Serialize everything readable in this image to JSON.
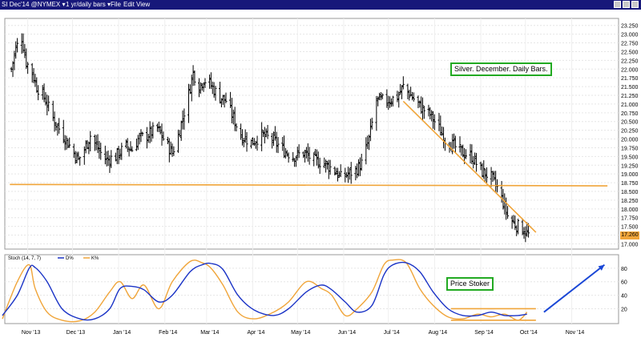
{
  "toolbar": {
    "symbol": "SI Dec'14 @NYMEX ▾",
    "interval": "1 yr/daily bars ▾",
    "menu_file": "File",
    "menu_edit": "Edit",
    "menu_view": "View"
  },
  "annotations": {
    "silver": "Silver. December. Daily Bars.",
    "stoker": "Price Stoker"
  },
  "colors": {
    "bars": "#000000",
    "trendline": "#f0a53a",
    "stoch_d": "#1a33c6",
    "stoch_k": "#f0a53a",
    "arrow": "#1a47d6",
    "note_border": "#22aa22",
    "titlebar": "#17187a"
  },
  "chart_data": [
    {
      "type": "ohlc",
      "title": "SI Dec'14 @NYMEX",
      "interval": "1 yr/daily bars",
      "x_labels": [
        "Nov '13",
        "Dec '13",
        "Jan '14",
        "Feb '14",
        "Mar '14",
        "Apr '14",
        "May '14",
        "Jun '14",
        "Jul '14",
        "Aug '14",
        "Sep '14",
        "Oct '14",
        "Nov '14"
      ],
      "y_ticks": [
        "23.250",
        "23.000",
        "22.750",
        "22.500",
        "22.250",
        "22.000",
        "21.750",
        "21.500",
        "21.250",
        "21.000",
        "20.750",
        "20.500",
        "20.250",
        "20.000",
        "19.750",
        "19.500",
        "19.250",
        "19.000",
        "18.750",
        "18.500",
        "18.250",
        "18.000",
        "17.750",
        "17.500",
        "17.250",
        "17.000"
      ],
      "ylim": [
        16.85,
        23.45
      ],
      "last_price": "17.260",
      "close_path": [
        [
          "2013-10-21",
          22.0
        ],
        [
          "2013-10-24",
          22.6
        ],
        [
          "2013-10-28",
          22.9
        ],
        [
          "2013-10-31",
          22.2
        ],
        [
          "2013-11-04",
          21.9
        ],
        [
          "2013-11-07",
          21.5
        ],
        [
          "2013-11-12",
          21.2
        ],
        [
          "2013-11-15",
          20.9
        ],
        [
          "2013-11-19",
          20.5
        ],
        [
          "2013-11-25",
          20.1
        ],
        [
          "2013-12-02",
          19.6
        ],
        [
          "2013-12-05",
          19.4
        ],
        [
          "2013-12-09",
          19.7
        ],
        [
          "2013-12-13",
          20.1
        ],
        [
          "2013-12-17",
          19.8
        ],
        [
          "2013-12-20",
          19.6
        ],
        [
          "2013-12-24",
          19.4
        ],
        [
          "2013-12-30",
          19.5
        ],
        [
          "2014-01-06",
          19.8
        ],
        [
          "2014-01-10",
          19.7
        ],
        [
          "2014-01-14",
          20.0
        ],
        [
          "2014-01-20",
          20.1
        ],
        [
          "2014-01-27",
          20.3
        ],
        [
          "2014-02-03",
          19.8
        ],
        [
          "2014-02-06",
          19.6
        ],
        [
          "2014-02-10",
          20.1
        ],
        [
          "2014-02-13",
          20.6
        ],
        [
          "2014-02-17",
          21.3
        ],
        [
          "2014-02-20",
          21.9
        ],
        [
          "2014-02-24",
          21.5
        ],
        [
          "2014-02-27",
          21.7
        ],
        [
          "2014-03-03",
          21.6
        ],
        [
          "2014-03-06",
          21.4
        ],
        [
          "2014-03-10",
          21.2
        ],
        [
          "2014-03-14",
          21.1
        ],
        [
          "2014-03-19",
          20.6
        ],
        [
          "2014-03-24",
          20.1
        ],
        [
          "2014-03-31",
          19.9
        ],
        [
          "2014-04-07",
          20.1
        ],
        [
          "2014-04-14",
          20.0
        ],
        [
          "2014-04-21",
          19.7
        ],
        [
          "2014-04-28",
          19.5
        ],
        [
          "2014-05-05",
          19.6
        ],
        [
          "2014-05-12",
          19.4
        ],
        [
          "2014-05-19",
          19.3
        ],
        [
          "2014-05-26",
          19.1
        ],
        [
          "2014-05-30",
          18.9
        ],
        [
          "2014-06-04",
          19.0
        ],
        [
          "2014-06-09",
          19.1
        ],
        [
          "2014-06-13",
          19.3
        ],
        [
          "2014-06-18",
          20.0
        ],
        [
          "2014-06-23",
          21.1
        ],
        [
          "2014-06-30",
          21.1
        ],
        [
          "2014-07-07",
          21.2
        ],
        [
          "2014-07-11",
          21.5
        ],
        [
          "2014-07-17",
          21.2
        ],
        [
          "2014-07-23",
          20.9
        ],
        [
          "2014-07-29",
          20.7
        ],
        [
          "2014-08-04",
          20.3
        ],
        [
          "2014-08-08",
          20.0
        ],
        [
          "2014-08-14",
          19.8
        ],
        [
          "2014-08-20",
          19.6
        ],
        [
          "2014-08-26",
          19.5
        ],
        [
          "2014-09-01",
          19.1
        ],
        [
          "2014-09-08",
          18.9
        ],
        [
          "2014-09-12",
          18.6
        ],
        [
          "2014-09-16",
          18.2
        ],
        [
          "2014-09-19",
          17.8
        ],
        [
          "2014-09-23",
          17.6
        ],
        [
          "2014-09-26",
          17.5
        ],
        [
          "2014-09-30",
          17.4
        ],
        [
          "2014-10-03",
          17.26
        ]
      ],
      "support_line": {
        "from": [
          "2013-10-20",
          18.7
        ],
        "to": [
          "2014-11-25",
          18.66
        ]
      },
      "down_trendline": {
        "from": [
          "2014-07-11",
          21.08
        ],
        "to": [
          "2014-10-08",
          17.33
        ]
      }
    },
    {
      "type": "line",
      "indicator_label": "Stoch (14, 7, 7)",
      "legend": [
        {
          "name": "D%",
          "color": "#1a33c6"
        },
        {
          "name": "K%",
          "color": "#f0a53a"
        }
      ],
      "y_ticks": [
        "80",
        "60",
        "40",
        "20"
      ],
      "ylim": [
        -2,
        100
      ],
      "series": [
        {
          "name": "D%",
          "points": [
            [
              "2013-10-15",
              10
            ],
            [
              "2013-10-25",
              40
            ],
            [
              "2013-11-02",
              80
            ],
            [
              "2013-11-06",
              81
            ],
            [
              "2013-11-14",
              60
            ],
            [
              "2013-11-24",
              20
            ],
            [
              "2013-12-06",
              5
            ],
            [
              "2013-12-16",
              5
            ],
            [
              "2013-12-26",
              20
            ],
            [
              "2014-01-02",
              50
            ],
            [
              "2014-01-10",
              53
            ],
            [
              "2014-01-18",
              48
            ],
            [
              "2014-01-28",
              30
            ],
            [
              "2014-02-06",
              40
            ],
            [
              "2014-02-18",
              75
            ],
            [
              "2014-02-26",
              85
            ],
            [
              "2014-03-04",
              87
            ],
            [
              "2014-03-12",
              78
            ],
            [
              "2014-03-22",
              40
            ],
            [
              "2014-04-02",
              18
            ],
            [
              "2014-04-15",
              10
            ],
            [
              "2014-04-25",
              20
            ],
            [
              "2014-05-07",
              45
            ],
            [
              "2014-05-17",
              55
            ],
            [
              "2014-05-24",
              48
            ],
            [
              "2014-06-02",
              30
            ],
            [
              "2014-06-10",
              15
            ],
            [
              "2014-06-20",
              25
            ],
            [
              "2014-06-28",
              70
            ],
            [
              "2014-07-04",
              85
            ],
            [
              "2014-07-13",
              88
            ],
            [
              "2014-07-22",
              75
            ],
            [
              "2014-07-31",
              45
            ],
            [
              "2014-08-10",
              20
            ],
            [
              "2014-08-20",
              10
            ],
            [
              "2014-08-30",
              10
            ],
            [
              "2014-09-08",
              15
            ],
            [
              "2014-09-17",
              10
            ],
            [
              "2014-09-26",
              10
            ],
            [
              "2014-10-02",
              12
            ]
          ]
        },
        {
          "name": "K%",
          "points": [
            [
              "2013-10-15",
              5
            ],
            [
              "2013-10-25",
              60
            ],
            [
              "2013-11-02",
              85
            ],
            [
              "2013-11-06",
              50
            ],
            [
              "2013-11-14",
              15
            ],
            [
              "2013-11-24",
              3
            ],
            [
              "2013-12-06",
              2
            ],
            [
              "2013-12-16",
              15
            ],
            [
              "2013-12-26",
              45
            ],
            [
              "2014-01-02",
              60
            ],
            [
              "2014-01-10",
              35
            ],
            [
              "2014-01-18",
              55
            ],
            [
              "2014-01-28",
              20
            ],
            [
              "2014-02-06",
              60
            ],
            [
              "2014-02-18",
              90
            ],
            [
              "2014-02-26",
              88
            ],
            [
              "2014-03-04",
              80
            ],
            [
              "2014-03-12",
              55
            ],
            [
              "2014-03-22",
              15
            ],
            [
              "2014-04-02",
              5
            ],
            [
              "2014-04-15",
              15
            ],
            [
              "2014-04-25",
              30
            ],
            [
              "2014-05-07",
              60
            ],
            [
              "2014-05-17",
              50
            ],
            [
              "2014-05-24",
              40
            ],
            [
              "2014-06-02",
              10
            ],
            [
              "2014-06-10",
              20
            ],
            [
              "2014-06-20",
              45
            ],
            [
              "2014-06-28",
              85
            ],
            [
              "2014-07-04",
              92
            ],
            [
              "2014-07-13",
              88
            ],
            [
              "2014-07-22",
              50
            ],
            [
              "2014-07-31",
              25
            ],
            [
              "2014-08-10",
              8
            ],
            [
              "2014-08-20",
              5
            ],
            [
              "2014-08-30",
              12
            ],
            [
              "2014-09-08",
              8
            ],
            [
              "2014-09-17",
              12
            ],
            [
              "2014-09-26",
              3
            ],
            [
              "2014-10-02",
              15
            ]
          ]
        }
      ],
      "channel_upper": {
        "from": [
          "2014-08-12",
          20
        ],
        "to": [
          "2014-10-08",
          20
        ]
      },
      "channel_lower": {
        "from": [
          "2014-08-12",
          3
        ],
        "to": [
          "2014-10-08",
          3
        ]
      },
      "projection_arrow": {
        "from": [
          "2014-10-08",
          15
        ],
        "to": [
          "2014-11-23",
          85
        ]
      }
    }
  ]
}
